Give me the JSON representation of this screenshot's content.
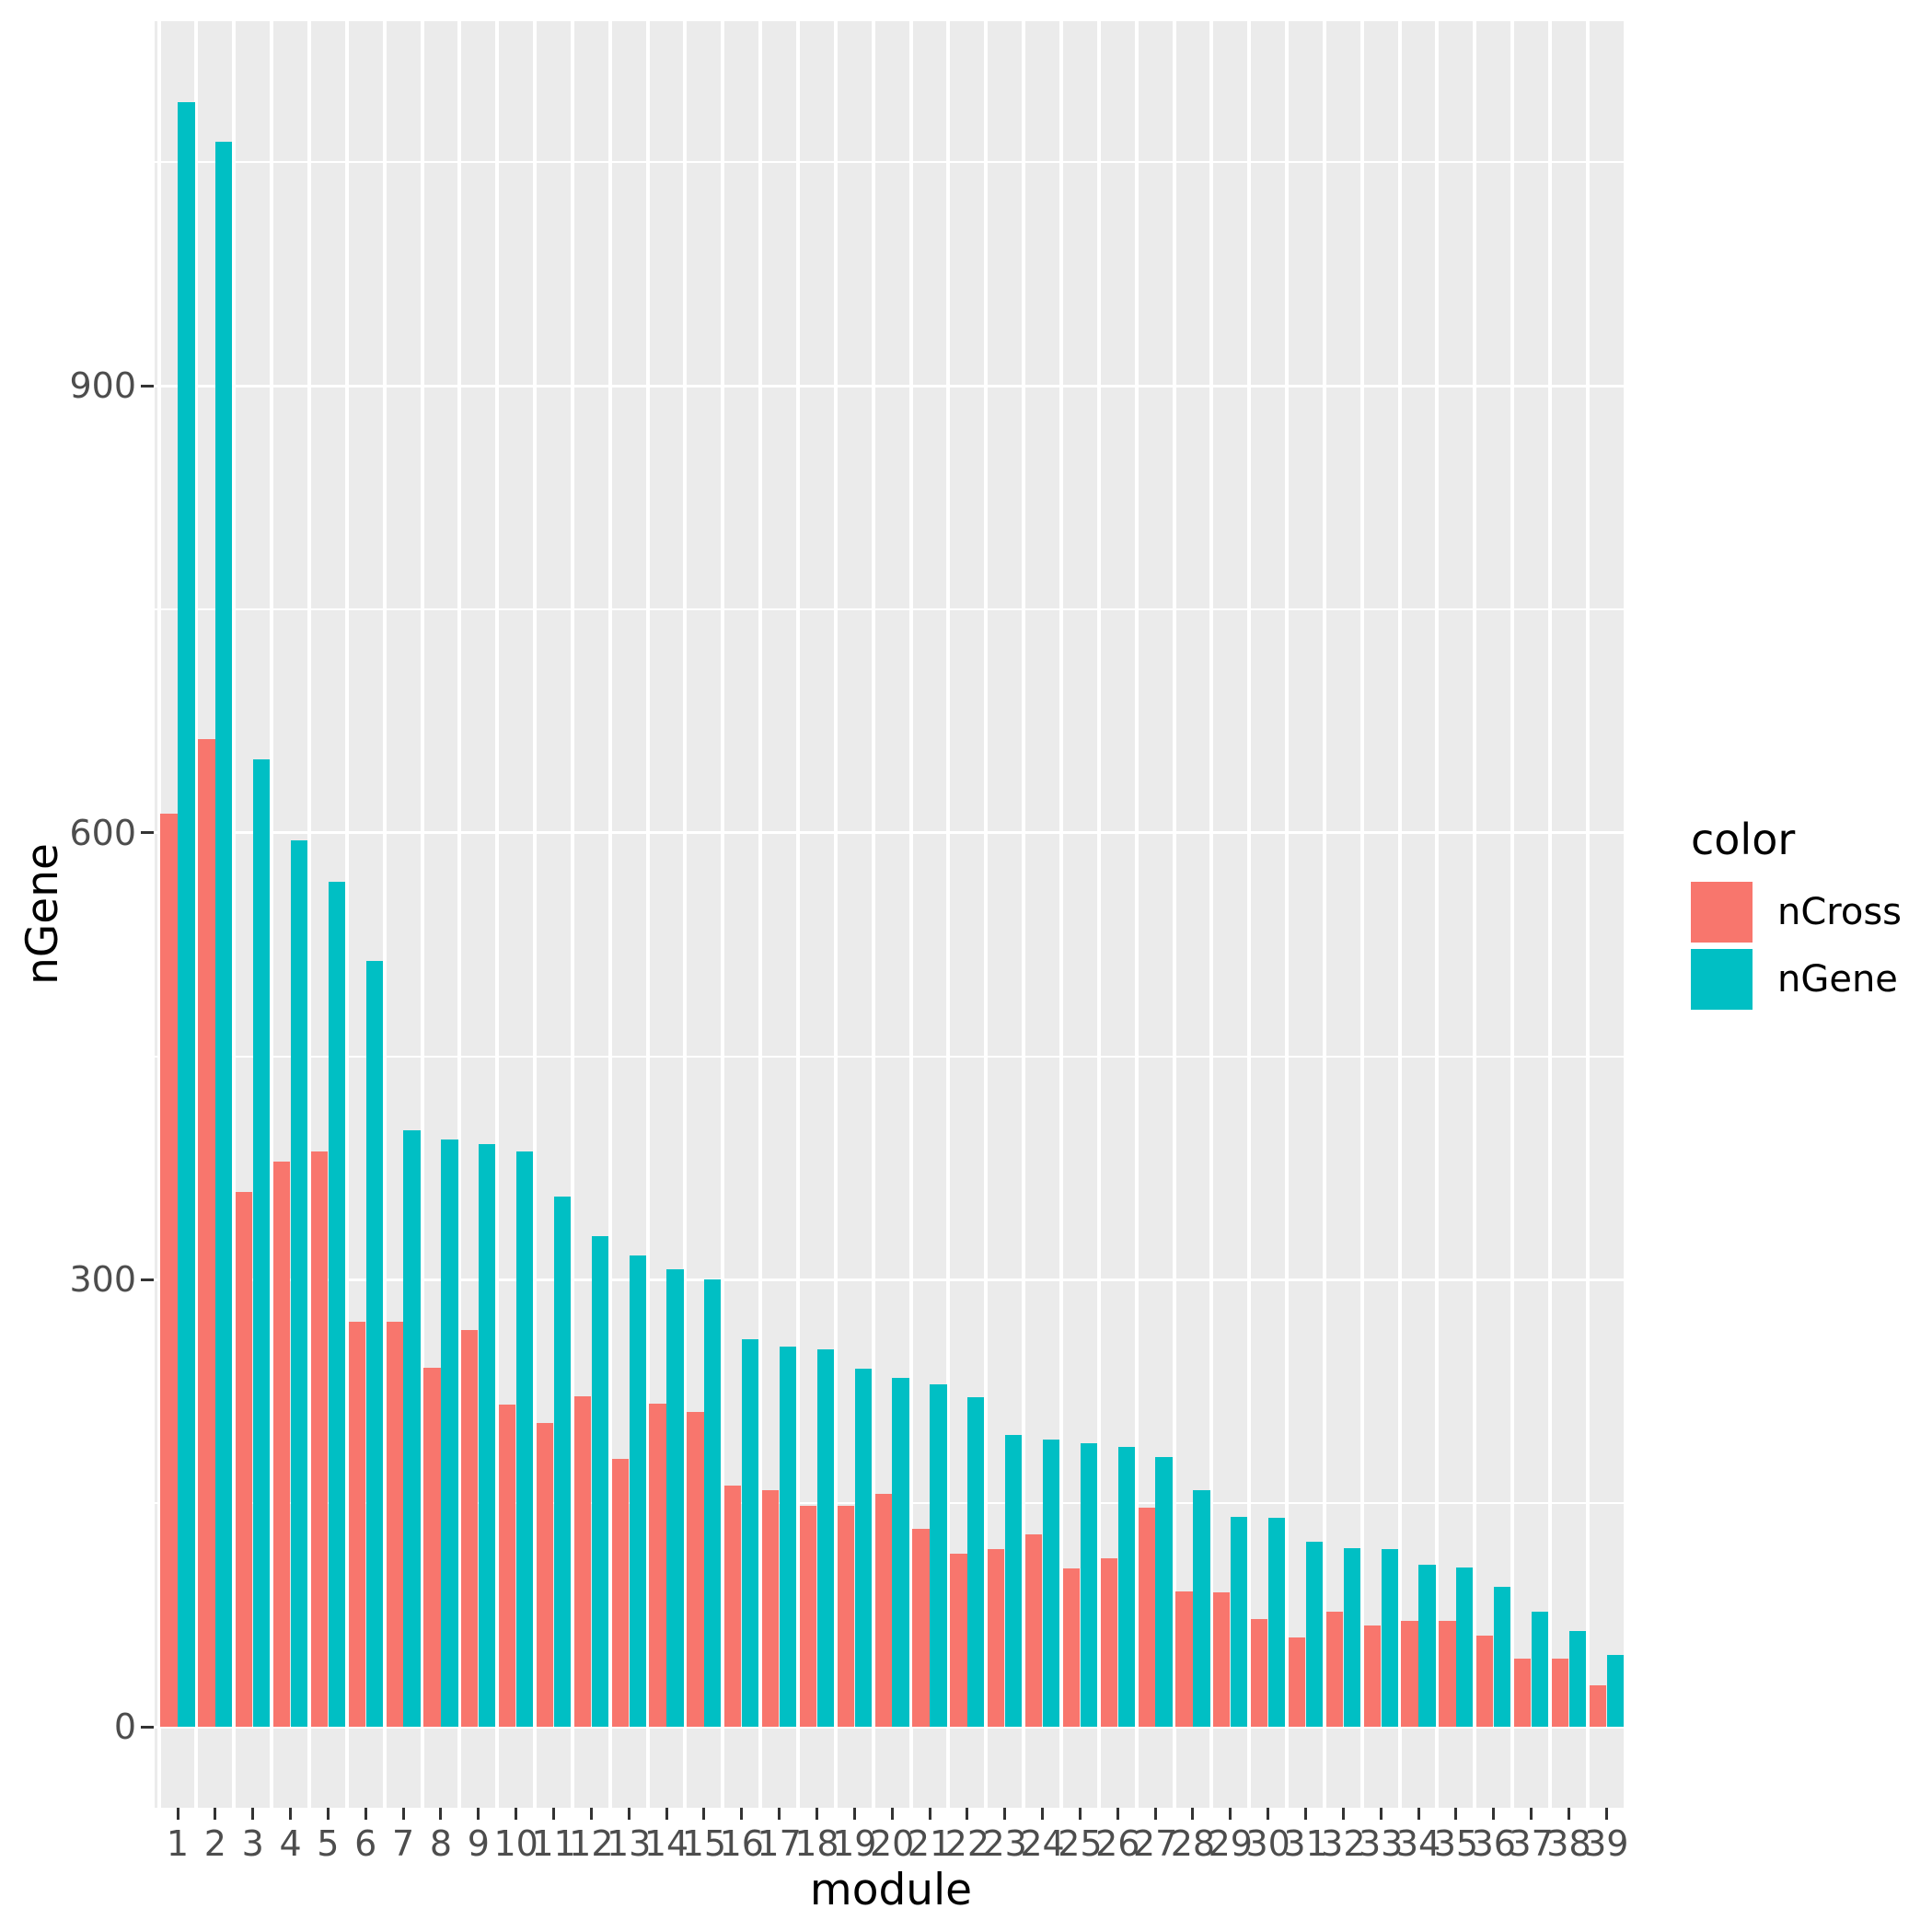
{
  "chart_data": {
    "type": "bar",
    "subtype": "grouped-dodged",
    "title": "",
    "xlabel": "module",
    "ylabel": "nGene",
    "categories": [
      "1",
      "2",
      "3",
      "4",
      "5",
      "6",
      "7",
      "8",
      "9",
      "10",
      "11",
      "12",
      "13",
      "14",
      "15",
      "16",
      "17",
      "18",
      "19",
      "20",
      "21",
      "22",
      "23",
      "24",
      "25",
      "26",
      "27",
      "28",
      "29",
      "30",
      "31",
      "32",
      "33",
      "34",
      "35",
      "36",
      "37",
      "38",
      "39"
    ],
    "series": [
      {
        "name": "nCross",
        "color": "#F8766D",
        "values": [
          613,
          663,
          359,
          379,
          386,
          272,
          272,
          241,
          266,
          216,
          204,
          222,
          180,
          217,
          211,
          162,
          159,
          148,
          148,
          156,
          133,
          116,
          119,
          129,
          106,
          113,
          147,
          91,
          90,
          72,
          60,
          77,
          68,
          71,
          71,
          61,
          46,
          46,
          28
        ]
      },
      {
        "name": "nGene",
        "color": "#00BFC4",
        "values": [
          1090,
          1064,
          649,
          595,
          567,
          514,
          400,
          394,
          391,
          386,
          356,
          329,
          316,
          307,
          300,
          260,
          255,
          253,
          240,
          234,
          230,
          221,
          196,
          193,
          190,
          188,
          181,
          159,
          141,
          140,
          124,
          120,
          119,
          109,
          107,
          94,
          77,
          64,
          48
        ]
      }
    ],
    "ylim": [
      0,
      1145
    ],
    "yticks": [
      0,
      300,
      600,
      900
    ],
    "ytick_labels": [
      "0",
      "300",
      "600",
      "900"
    ],
    "yticks_minor": [
      150,
      450,
      750,
      1050
    ],
    "grid": "on",
    "legend_position": "right",
    "panel_background": "#EBEBEB",
    "gridline_color": "#FFFFFF",
    "tick_label_color": "#4D4D4D",
    "axis_title_color": "#000000"
  },
  "axes": {
    "x_title": "module",
    "y_title": "nGene"
  },
  "legend": {
    "title": "color",
    "items": [
      {
        "label": "nCross",
        "color": "#F8766D"
      },
      {
        "label": "nGene",
        "color": "#00BFC4"
      }
    ]
  }
}
